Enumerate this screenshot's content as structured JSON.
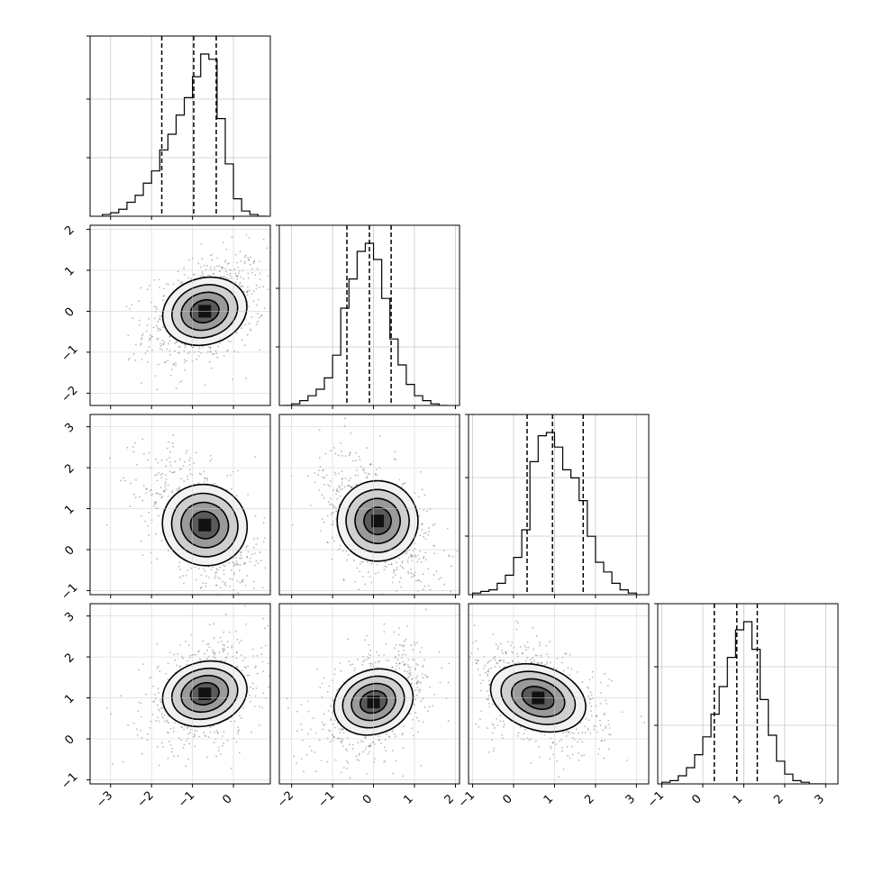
{
  "chart_data": {
    "type": "corner",
    "title": "",
    "n_params": 4,
    "parameter_labels": [
      "",
      "",
      "",
      ""
    ],
    "params": [
      {
        "range": [
          -3.5,
          0.9
        ],
        "ticks": [
          -3,
          -2,
          -1,
          0
        ],
        "quantiles": [
          -1.75,
          -0.97,
          -0.42
        ],
        "mean": -1.0,
        "std": 0.55,
        "hist_peak_x": -0.7
      },
      {
        "range": [
          -2.3,
          2.1
        ],
        "ticks": [
          -2,
          -1,
          0,
          1,
          2
        ],
        "quantiles": [
          -0.65,
          -0.1,
          0.43
        ],
        "mean": -0.1,
        "std": 0.52,
        "hist_peak_x": 0.0
      },
      {
        "range": [
          -1.1,
          3.3
        ],
        "ticks": [
          -1,
          0,
          1,
          2,
          3
        ],
        "quantiles": [
          0.33,
          0.95,
          1.7
        ],
        "mean": 1.0,
        "std": 0.63,
        "hist_peak_x": 0.9
      },
      {
        "range": [
          -1.1,
          3.3
        ],
        "ticks": [
          -1,
          0,
          1,
          2,
          3
        ],
        "quantiles": [
          0.28,
          0.83,
          1.33
        ],
        "mean": 0.82,
        "std": 0.5,
        "hist_peak_x": 0.8
      }
    ],
    "histograms": [
      {
        "param": 0,
        "bins": [
          -3.2,
          -3.0,
          -2.8,
          -2.6,
          -2.4,
          -2.2,
          -2.0,
          -1.8,
          -1.6,
          -1.4,
          -1.2,
          -1.0,
          -0.8,
          -0.6,
          -0.4,
          -0.2,
          0.0,
          0.2,
          0.4,
          0.6
        ],
        "counts": [
          1,
          2,
          4,
          8,
          12,
          19,
          26,
          38,
          47,
          58,
          68,
          80,
          93,
          90,
          56,
          30,
          10,
          3,
          1,
          0
        ]
      },
      {
        "param": 1,
        "bins": [
          -2.2,
          -2.0,
          -1.8,
          -1.6,
          -1.4,
          -1.2,
          -1.0,
          -0.8,
          -0.6,
          -0.4,
          -0.2,
          0.0,
          0.2,
          0.4,
          0.6,
          0.8,
          1.0,
          1.2,
          1.4,
          1.6
        ],
        "counts": [
          0,
          1,
          3,
          6,
          10,
          17,
          31,
          60,
          78,
          95,
          100,
          90,
          66,
          41,
          25,
          13,
          6,
          3,
          1,
          0
        ]
      },
      {
        "param": 2,
        "bins": [
          -1.0,
          -0.8,
          -0.6,
          -0.4,
          -0.2,
          0.0,
          0.2,
          0.4,
          0.6,
          0.8,
          1.0,
          1.2,
          1.4,
          1.6,
          1.8,
          2.0,
          2.2,
          2.4,
          2.6,
          2.8
        ],
        "counts": [
          1,
          2,
          3,
          7,
          12,
          23,
          40,
          82,
          98,
          100,
          91,
          77,
          72,
          58,
          36,
          20,
          14,
          7,
          3,
          1
        ]
      },
      {
        "param": 3,
        "bins": [
          -1.0,
          -0.8,
          -0.6,
          -0.4,
          -0.2,
          0.0,
          0.2,
          0.4,
          0.6,
          0.8,
          1.0,
          1.2,
          1.4,
          1.6,
          1.8,
          2.0,
          2.2,
          2.4,
          2.6,
          2.8
        ],
        "counts": [
          1,
          2,
          5,
          10,
          18,
          29,
          43,
          60,
          78,
          95,
          100,
          83,
          52,
          30,
          14,
          6,
          2,
          1,
          0,
          0
        ]
      }
    ],
    "pair_panels": [
      {
        "x_param": 0,
        "y_param": 1,
        "mode_x": -0.7,
        "mode_y": 0.0,
        "correlation": 0.35,
        "sx": 0.55,
        "sy": 0.52
      },
      {
        "x_param": 0,
        "y_param": 2,
        "mode_x": -0.7,
        "mode_y": 0.6,
        "correlation": -0.55,
        "sx": 0.55,
        "sy": 0.63
      },
      {
        "x_param": 1,
        "y_param": 2,
        "mode_x": 0.1,
        "mode_y": 0.7,
        "correlation": -0.5,
        "sx": 0.52,
        "sy": 0.63
      },
      {
        "x_param": 0,
        "y_param": 3,
        "mode_x": -0.7,
        "mode_y": 1.1,
        "correlation": 0.3,
        "sx": 0.55,
        "sy": 0.5
      },
      {
        "x_param": 1,
        "y_param": 3,
        "mode_x": 0.0,
        "mode_y": 0.9,
        "correlation": 0.45,
        "sx": 0.52,
        "sy": 0.5
      },
      {
        "x_param": 2,
        "y_param": 3,
        "mode_x": 0.6,
        "mode_y": 1.0,
        "correlation": -0.4,
        "sx": 0.63,
        "sy": 0.5
      }
    ],
    "contour_levels": [
      0.3,
      0.6,
      0.85,
      0.97
    ],
    "grid": true,
    "legend": "none"
  }
}
